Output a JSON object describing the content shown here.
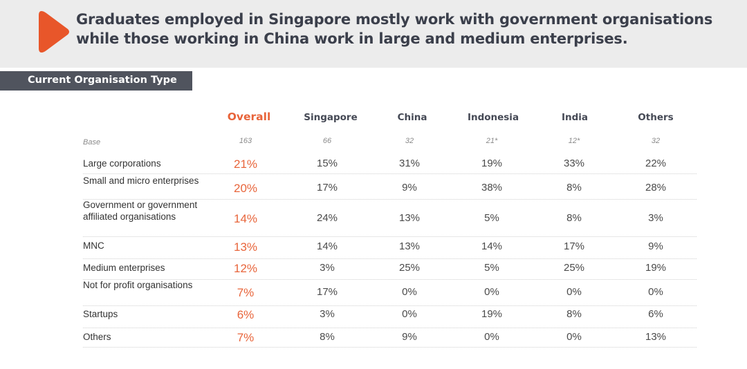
{
  "banner": {
    "title_line1": "Graduates employed in Singapore mostly work with government organisations",
    "title_line2": "while those working in China work in large and medium enterprises.",
    "accent_color": "#e8562a"
  },
  "section": {
    "label": "Current Organisation Type"
  },
  "table": {
    "columns": [
      "Overall",
      "Singapore",
      "China",
      "Indonesia",
      "India",
      "Others"
    ],
    "base": {
      "label": "Base",
      "values": [
        "163",
        "66",
        "32",
        "21*",
        "12*",
        "32"
      ]
    },
    "rows": [
      {
        "label": "Large corporations",
        "values": [
          "21%",
          "15%",
          "31%",
          "19%",
          "33%",
          "22%"
        ]
      },
      {
        "label": "Small and micro enterprises",
        "values": [
          "20%",
          "17%",
          "9%",
          "38%",
          "8%",
          "28%"
        ]
      },
      {
        "label": "Government or government affiliated organisations",
        "values": [
          "14%",
          "24%",
          "13%",
          "5%",
          "8%",
          "3%"
        ]
      },
      {
        "label": "MNC",
        "values": [
          "13%",
          "14%",
          "13%",
          "14%",
          "17%",
          "9%"
        ]
      },
      {
        "label": "Medium enterprises",
        "values": [
          "12%",
          "3%",
          "25%",
          "5%",
          "25%",
          "19%"
        ]
      },
      {
        "label": "Not for profit organisations",
        "values": [
          "7%",
          "17%",
          "0%",
          "0%",
          "0%",
          "0%"
        ]
      },
      {
        "label": "Startups",
        "values": [
          "6%",
          "3%",
          "0%",
          "19%",
          "8%",
          "6%"
        ]
      },
      {
        "label": "Others",
        "values": [
          "7%",
          "8%",
          "9%",
          "0%",
          "0%",
          "13%"
        ]
      }
    ]
  },
  "colors": {
    "overall": "#e8643a",
    "header_text": "#454955",
    "tab_bg": "#50545e"
  }
}
